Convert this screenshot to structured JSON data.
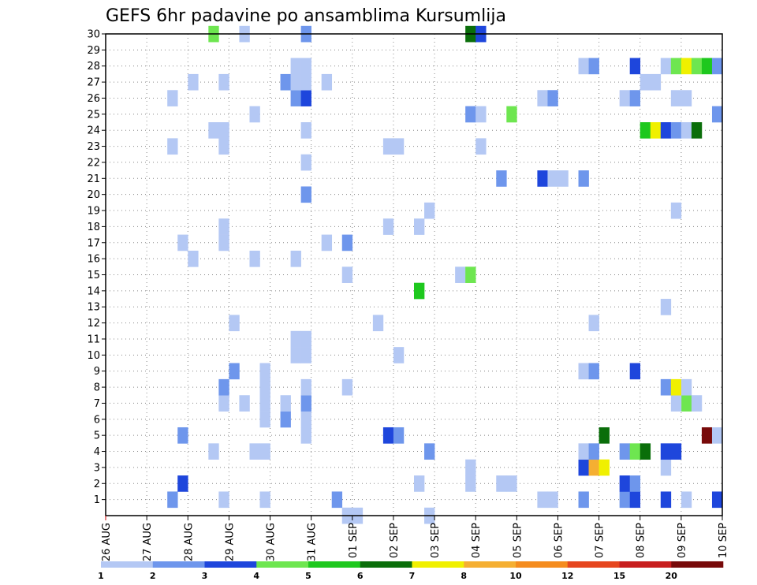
{
  "chart_data": {
    "type": "heatmap",
    "title": "GEFS 6hr padavine po ansamblima Kursumlija",
    "xlabel": "",
    "ylabel": "",
    "x_tick_labels": [
      "26 AUG",
      "27 AUG",
      "28 AUG",
      "29 AUG",
      "30 AUG",
      "31 AUG",
      "01 SEP",
      "02 SEP",
      "03 SEP",
      "04 SEP",
      "05 SEP",
      "06 SEP",
      "07 SEP",
      "08 SEP",
      "09 SEP",
      "10 SEP"
    ],
    "x_range_steps": [
      0,
      60
    ],
    "steps_per_day": 4,
    "y_tick_labels": [
      "1",
      "2",
      "3",
      "4",
      "5",
      "6",
      "7",
      "8",
      "9",
      "10",
      "11",
      "12",
      "13",
      "14",
      "15",
      "16",
      "17",
      "18",
      "19",
      "20",
      "21",
      "22",
      "23",
      "24",
      "25",
      "26",
      "27",
      "28",
      "29",
      "30"
    ],
    "ylim": [
      0,
      30
    ],
    "grid": true,
    "legend_levels": [
      "1",
      "2",
      "3",
      "4",
      "5",
      "6",
      "7",
      "8",
      "10",
      "12",
      "15",
      "20"
    ],
    "legend_colors": [
      "#b4c8f4",
      "#6e96ec",
      "#1e46dc",
      "#6ee650",
      "#1ec81e",
      "#0a6e0a",
      "#f0f000",
      "#f5af32",
      "#f58c1e",
      "#e6461e",
      "#c81e1e",
      "#780a0a"
    ],
    "cell_value_classes": "c = colour class index into legend_colors (0 = 1-2 mm, 11 = >20 mm)",
    "cells": [
      {
        "m": 1,
        "t": 6.5,
        "c": 1
      },
      {
        "m": 1,
        "t": 11.5,
        "c": 0
      },
      {
        "m": 1,
        "t": 15.5,
        "c": 0
      },
      {
        "m": 1,
        "t": 22.5,
        "c": 1
      },
      {
        "m": 1,
        "t": 42.5,
        "c": 0
      },
      {
        "m": 1,
        "t": 43.5,
        "c": 0
      },
      {
        "m": 1,
        "t": 46.5,
        "c": 1
      },
      {
        "m": 1,
        "t": 50.5,
        "c": 1
      },
      {
        "m": 1,
        "t": 51.5,
        "c": 2
      },
      {
        "m": 1,
        "t": 54.5,
        "c": 2
      },
      {
        "m": 1,
        "t": 56.5,
        "c": 0
      },
      {
        "m": 1,
        "t": 59.5,
        "c": 2
      },
      {
        "m": 2,
        "t": 7.5,
        "c": 2
      },
      {
        "m": 2,
        "t": 30.5,
        "c": 0
      },
      {
        "m": 2,
        "t": 35.5,
        "c": 0
      },
      {
        "m": 2,
        "t": 38.5,
        "c": 0
      },
      {
        "m": 2,
        "t": 39.5,
        "c": 0
      },
      {
        "m": 2,
        "t": 50.5,
        "c": 2
      },
      {
        "m": 2,
        "t": 51.5,
        "c": 1
      },
      {
        "m": 3,
        "t": 35.5,
        "c": 0
      },
      {
        "m": 3,
        "t": 46.5,
        "c": 2
      },
      {
        "m": 3,
        "t": 47.5,
        "c": 7
      },
      {
        "m": 3,
        "t": 48.5,
        "c": 6
      },
      {
        "m": 3,
        "t": 54.5,
        "c": 0
      },
      {
        "m": 4,
        "t": 10.5,
        "c": 0
      },
      {
        "m": 4,
        "t": 14.5,
        "c": 0
      },
      {
        "m": 4,
        "t": 15.5,
        "c": 0
      },
      {
        "m": 4,
        "t": 31.5,
        "c": 1
      },
      {
        "m": 4,
        "t": 46.5,
        "c": 0
      },
      {
        "m": 4,
        "t": 47.5,
        "c": 1
      },
      {
        "m": 4,
        "t": 50.5,
        "c": 1
      },
      {
        "m": 4,
        "t": 51.5,
        "c": 3
      },
      {
        "m": 4,
        "t": 52.5,
        "c": 5
      },
      {
        "m": 4,
        "t": 54.5,
        "c": 2
      },
      {
        "m": 4,
        "t": 55.5,
        "c": 2
      },
      {
        "m": 5,
        "t": 7.5,
        "c": 1
      },
      {
        "m": 5,
        "t": 19.5,
        "c": 0
      },
      {
        "m": 5,
        "t": 27.5,
        "c": 2
      },
      {
        "m": 5,
        "t": 28.5,
        "c": 1
      },
      {
        "m": 5,
        "t": 48.5,
        "c": 5
      },
      {
        "m": 5,
        "t": 58.5,
        "c": 11
      },
      {
        "m": 5,
        "t": 59.5,
        "c": 0
      },
      {
        "m": 6,
        "t": 15.5,
        "c": 0
      },
      {
        "m": 6,
        "t": 17.5,
        "c": 1
      },
      {
        "m": 6,
        "t": 19.5,
        "c": 0
      },
      {
        "m": 7,
        "t": 11.5,
        "c": 0
      },
      {
        "m": 7,
        "t": 13.5,
        "c": 0
      },
      {
        "m": 7,
        "t": 15.5,
        "c": 0
      },
      {
        "m": 7,
        "t": 17.5,
        "c": 0
      },
      {
        "m": 7,
        "t": 19.5,
        "c": 1
      },
      {
        "m": 7,
        "t": 56.5,
        "c": 3
      },
      {
        "m": 7,
        "t": 57.5,
        "c": 0
      },
      {
        "m": 7,
        "t": 55.5,
        "c": 0
      },
      {
        "m": 8,
        "t": 11.5,
        "c": 1
      },
      {
        "m": 8,
        "t": 15.5,
        "c": 0
      },
      {
        "m": 8,
        "t": 19.5,
        "c": 0
      },
      {
        "m": 8,
        "t": 23.5,
        "c": 0
      },
      {
        "m": 8,
        "t": 54.5,
        "c": 1
      },
      {
        "m": 8,
        "t": 55.5,
        "c": 6
      },
      {
        "m": 8,
        "t": 56.5,
        "c": 0
      },
      {
        "m": 9,
        "t": 12.5,
        "c": 1
      },
      {
        "m": 9,
        "t": 15.5,
        "c": 0
      },
      {
        "m": 9,
        "t": 46.5,
        "c": 0
      },
      {
        "m": 9,
        "t": 47.5,
        "c": 1
      },
      {
        "m": 9,
        "t": 51.5,
        "c": 2
      },
      {
        "m": 10,
        "t": 18.5,
        "c": 0
      },
      {
        "m": 10,
        "t": 19.5,
        "c": 0
      },
      {
        "m": 10,
        "t": 28.5,
        "c": 0
      },
      {
        "m": 11,
        "t": 18.5,
        "c": 0
      },
      {
        "m": 11,
        "t": 19.5,
        "c": 0
      },
      {
        "m": 12,
        "t": 12.5,
        "c": 0
      },
      {
        "m": 12,
        "t": 26.5,
        "c": 0
      },
      {
        "m": 12,
        "t": 47.5,
        "c": 0
      },
      {
        "m": 13,
        "t": 54.5,
        "c": 0
      },
      {
        "m": 14,
        "t": 30.5,
        "c": 4
      },
      {
        "m": 15,
        "t": 23.5,
        "c": 0
      },
      {
        "m": 15,
        "t": 34.5,
        "c": 0
      },
      {
        "m": 15,
        "t": 35.5,
        "c": 3
      },
      {
        "m": 16,
        "t": 8.5,
        "c": 0
      },
      {
        "m": 16,
        "t": 14.5,
        "c": 0
      },
      {
        "m": 16,
        "t": 18.5,
        "c": 0
      },
      {
        "m": 17,
        "t": 7.5,
        "c": 0
      },
      {
        "m": 17,
        "t": 11.5,
        "c": 0
      },
      {
        "m": 17,
        "t": 21.5,
        "c": 0
      },
      {
        "m": 17,
        "t": 23.5,
        "c": 1
      },
      {
        "m": 18,
        "t": 11.5,
        "c": 0
      },
      {
        "m": 18,
        "t": 27.5,
        "c": 0
      },
      {
        "m": 18,
        "t": 30.5,
        "c": 0
      },
      {
        "m": 19,
        "t": 31.5,
        "c": 0
      },
      {
        "m": 19,
        "t": 55.5,
        "c": 0
      },
      {
        "m": 20,
        "t": 19.5,
        "c": 1
      },
      {
        "m": 21,
        "t": 38.5,
        "c": 1
      },
      {
        "m": 21,
        "t": 42.5,
        "c": 2
      },
      {
        "m": 21,
        "t": 43.5,
        "c": 0
      },
      {
        "m": 21,
        "t": 44.5,
        "c": 0
      },
      {
        "m": 21,
        "t": 46.5,
        "c": 1
      },
      {
        "m": 22,
        "t": 19.5,
        "c": 0
      },
      {
        "m": 23,
        "t": 6.5,
        "c": 0
      },
      {
        "m": 23,
        "t": 11.5,
        "c": 0
      },
      {
        "m": 23,
        "t": 27.5,
        "c": 0
      },
      {
        "m": 23,
        "t": 28.5,
        "c": 0
      },
      {
        "m": 23,
        "t": 36.5,
        "c": 0
      },
      {
        "m": 24,
        "t": 10.5,
        "c": 0
      },
      {
        "m": 24,
        "t": 11.5,
        "c": 0
      },
      {
        "m": 24,
        "t": 19.5,
        "c": 0
      },
      {
        "m": 24,
        "t": 52.5,
        "c": 4
      },
      {
        "m": 24,
        "t": 53.5,
        "c": 6
      },
      {
        "m": 24,
        "t": 54.5,
        "c": 2
      },
      {
        "m": 24,
        "t": 55.5,
        "c": 1
      },
      {
        "m": 24,
        "t": 56.5,
        "c": 0
      },
      {
        "m": 24,
        "t": 57.5,
        "c": 5
      },
      {
        "m": 25,
        "t": 14.5,
        "c": 0
      },
      {
        "m": 25,
        "t": 35.5,
        "c": 1
      },
      {
        "m": 25,
        "t": 36.5,
        "c": 0
      },
      {
        "m": 25,
        "t": 39.5,
        "c": 3
      },
      {
        "m": 25,
        "t": 59.5,
        "c": 1
      },
      {
        "m": 26,
        "t": 6.5,
        "c": 0
      },
      {
        "m": 26,
        "t": 18.5,
        "c": 1
      },
      {
        "m": 26,
        "t": 19.5,
        "c": 2
      },
      {
        "m": 26,
        "t": 42.5,
        "c": 0
      },
      {
        "m": 26,
        "t": 43.5,
        "c": 1
      },
      {
        "m": 26,
        "t": 50.5,
        "c": 0
      },
      {
        "m": 26,
        "t": 51.5,
        "c": 1
      },
      {
        "m": 26,
        "t": 55.5,
        "c": 0
      },
      {
        "m": 26,
        "t": 56.5,
        "c": 0
      },
      {
        "m": 27,
        "t": 8.5,
        "c": 0
      },
      {
        "m": 27,
        "t": 11.5,
        "c": 0
      },
      {
        "m": 27,
        "t": 17.5,
        "c": 1
      },
      {
        "m": 27,
        "t": 18.5,
        "c": 0
      },
      {
        "m": 27,
        "t": 19.5,
        "c": 0
      },
      {
        "m": 27,
        "t": 21.5,
        "c": 0
      },
      {
        "m": 27,
        "t": 52.5,
        "c": 0
      },
      {
        "m": 27,
        "t": 53.5,
        "c": 0
      },
      {
        "m": 28,
        "t": 18.5,
        "c": 0
      },
      {
        "m": 28,
        "t": 19.5,
        "c": 0
      },
      {
        "m": 28,
        "t": 46.5,
        "c": 0
      },
      {
        "m": 28,
        "t": 47.5,
        "c": 1
      },
      {
        "m": 28,
        "t": 51.5,
        "c": 2
      },
      {
        "m": 28,
        "t": 54.5,
        "c": 0
      },
      {
        "m": 28,
        "t": 55.5,
        "c": 3
      },
      {
        "m": 28,
        "t": 56.5,
        "c": 6
      },
      {
        "m": 28,
        "t": 57.5,
        "c": 3
      },
      {
        "m": 28,
        "t": 58.5,
        "c": 4
      },
      {
        "m": 28,
        "t": 59.5,
        "c": 1
      },
      {
        "m": 30,
        "t": 10.5,
        "c": 3
      },
      {
        "m": 30,
        "t": 13.5,
        "c": 0
      },
      {
        "m": 30,
        "t": 19.5,
        "c": 1
      },
      {
        "m": 30,
        "t": 35.5,
        "c": 5
      },
      {
        "m": 30,
        "t": 36.5,
        "c": 2
      },
      {
        "m": 0,
        "t": 23.5,
        "c": 0
      },
      {
        "m": 0,
        "t": 24.5,
        "c": 0
      },
      {
        "m": 0,
        "t": 31.5,
        "c": 0
      }
    ]
  }
}
